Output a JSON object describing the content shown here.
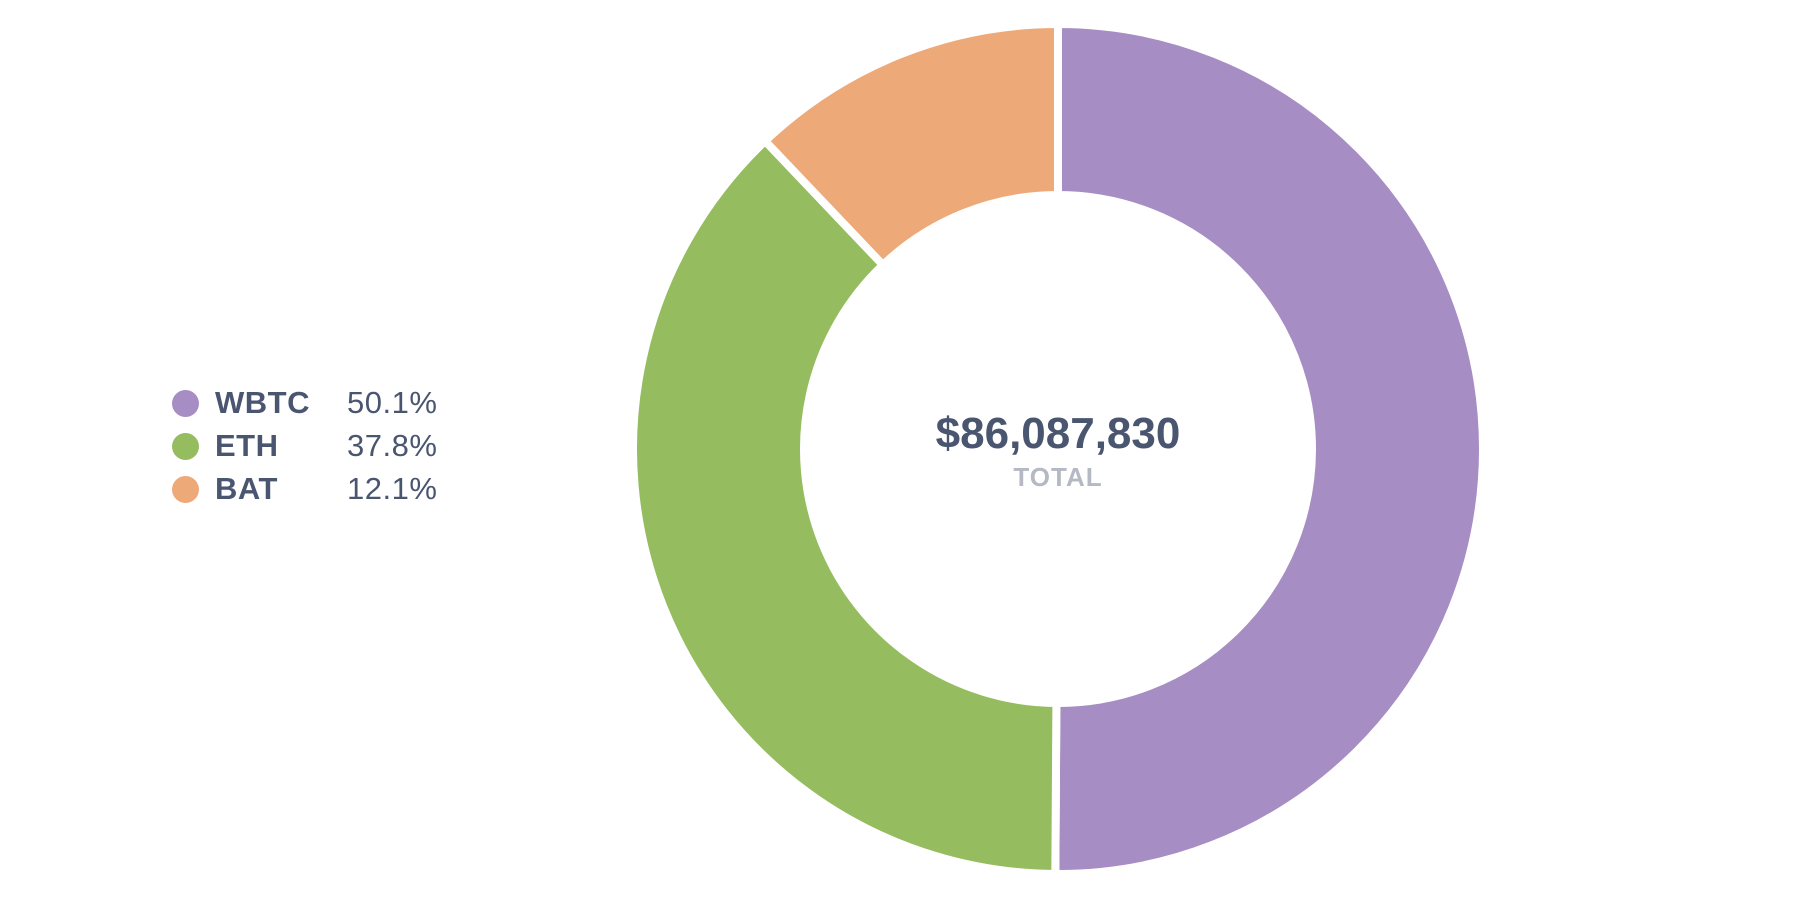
{
  "chart_data": {
    "type": "pie",
    "variant": "donut",
    "categories": [
      "WBTC",
      "ETH",
      "BAT"
    ],
    "values": [
      50.1,
      37.8,
      12.1
    ],
    "labels": [
      "50.1%",
      "37.8%",
      "12.1%"
    ],
    "colors": [
      "#a68dc3",
      "#95bc5f",
      "#eda978"
    ],
    "start": "top",
    "direction": "clockwise",
    "legend_position": "left",
    "center": {
      "total": "$86,087,830",
      "label": "TOTAL"
    }
  },
  "legend": {
    "items": [
      {
        "name": "WBTC",
        "pct": "50.1%",
        "color": "#a68dc3"
      },
      {
        "name": "ETH",
        "pct": "37.8%",
        "color": "#95bc5f"
      },
      {
        "name": "BAT",
        "pct": "12.1%",
        "color": "#eda978"
      }
    ]
  }
}
